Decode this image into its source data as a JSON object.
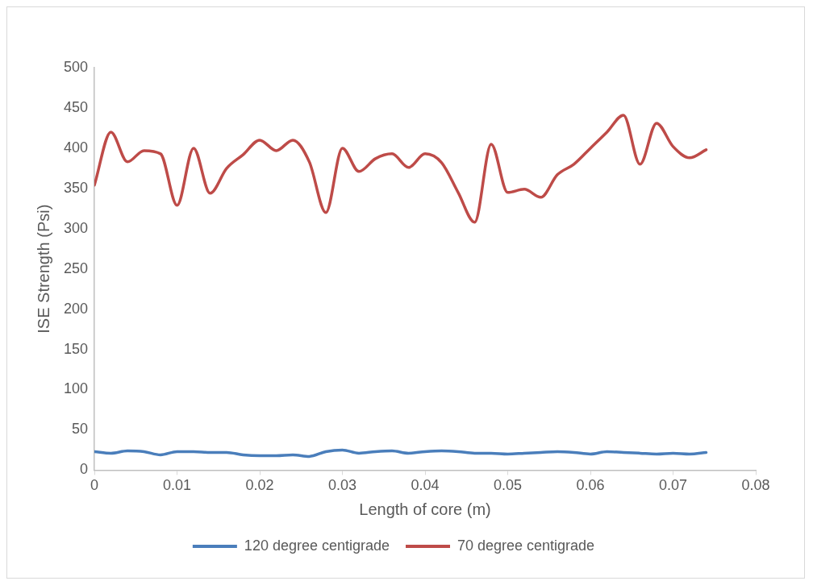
{
  "chart_data": {
    "type": "line",
    "xlabel": "Length of core (m)",
    "ylabel": "ISE Strength (Psi)",
    "x": [
      0,
      0.002,
      0.004,
      0.006,
      0.008,
      0.01,
      0.012,
      0.014,
      0.016,
      0.018,
      0.02,
      0.022,
      0.024,
      0.026,
      0.028,
      0.03,
      0.032,
      0.034,
      0.036,
      0.038,
      0.04,
      0.042,
      0.044,
      0.046,
      0.048,
      0.05,
      0.052,
      0.054,
      0.056,
      0.058,
      0.06,
      0.062,
      0.064,
      0.066,
      0.068,
      0.07,
      0.072,
      0.074
    ],
    "series": [
      {
        "name": "120 degree centigrade",
        "color": "#4a7ebb",
        "values": [
          23,
          21,
          24,
          23,
          19,
          23,
          23,
          22,
          22,
          19,
          18,
          18,
          19,
          17,
          23,
          25,
          21,
          23,
          24,
          21,
          23,
          24,
          23,
          21,
          21,
          20,
          21,
          22,
          23,
          22,
          20,
          23,
          22,
          21,
          20,
          21,
          20,
          22
        ]
      },
      {
        "name": "70 degree centigrade",
        "color": "#be4b48",
        "values": [
          354,
          420,
          383,
          397,
          393,
          329,
          400,
          344,
          375,
          392,
          410,
          397,
          410,
          383,
          320,
          400,
          371,
          387,
          393,
          376,
          393,
          382,
          345,
          308,
          405,
          345,
          349,
          339,
          367,
          380,
          400,
          420,
          441,
          380,
          431,
          402,
          388,
          398
        ]
      }
    ],
    "xlim": [
      0,
      0.08
    ],
    "xticks": [
      0,
      0.01,
      0.02,
      0.03,
      0.04,
      0.05,
      0.06,
      0.07,
      0.08
    ],
    "ylim": [
      0,
      500
    ],
    "yticks": [
      0,
      50,
      100,
      150,
      200,
      250,
      300,
      350,
      400,
      450,
      500
    ],
    "grid": false,
    "legend": "bottom",
    "marker": "none",
    "line_style": "solid"
  }
}
